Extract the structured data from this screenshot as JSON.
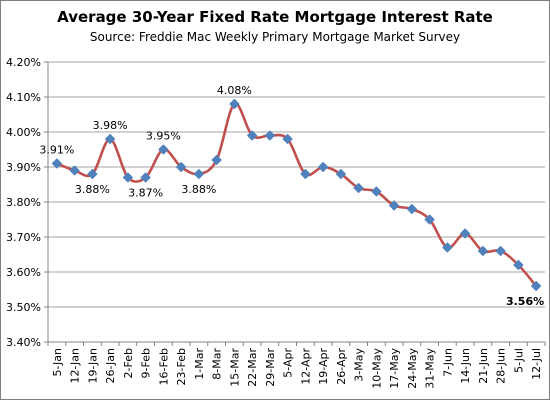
{
  "chart_data": {
    "type": "line",
    "title": "Average  30-Year Fixed Rate Mortgage Interest Rate",
    "subtitle": "Source:  Freddie  Mac Weekly  Primary  Mortgage Market Survey",
    "xlabel": "",
    "ylabel": "",
    "categories": [
      "5-Jan",
      "12-Jan",
      "19-Jan",
      "26-Jan",
      "2-Feb",
      "9-Feb",
      "16-Feb",
      "23-Feb",
      "1-Mar",
      "8-Mar",
      "15-Mar",
      "22-Mar",
      "29-Mar",
      "5-Apr",
      "12-Apr",
      "19-Apr",
      "26-Apr",
      "3-May",
      "10-May",
      "17-May",
      "24-May",
      "31-May",
      "7-Jun",
      "14-Jun",
      "21-Jun",
      "28-Jun",
      "5-Jul",
      "12-Jul"
    ],
    "series": [
      {
        "values": [
          3.91,
          3.89,
          3.88,
          3.98,
          3.87,
          3.87,
          3.95,
          3.9,
          3.88,
          3.92,
          4.08,
          3.99,
          3.99,
          3.98,
          3.88,
          3.9,
          3.88,
          3.84,
          3.83,
          3.79,
          3.78,
          3.75,
          3.67,
          3.71,
          3.66,
          3.66,
          3.62,
          3.56
        ],
        "line_color": "#c0504d",
        "marker_color": "#4f81bd"
      }
    ],
    "ylim": [
      3.4,
      4.2
    ],
    "y_ticks": [
      3.4,
      3.5,
      3.6,
      3.7,
      3.8,
      3.9,
      4.0,
      4.1,
      4.2
    ],
    "y_tick_labels": [
      "3.40%",
      "3.50%",
      "3.60%",
      "3.70%",
      "3.80%",
      "3.90%",
      "4.00%",
      "4.10%",
      "4.20%"
    ],
    "grid": true,
    "legend": "none",
    "data_labels": [
      {
        "index": 0,
        "text": "3.91%",
        "position": "above"
      },
      {
        "index": 2,
        "text": "3.88%",
        "position": "below"
      },
      {
        "index": 3,
        "text": "3.98%",
        "position": "above"
      },
      {
        "index": 5,
        "text": "3.87%",
        "position": "below"
      },
      {
        "index": 6,
        "text": "3.95%",
        "position": "above"
      },
      {
        "index": 8,
        "text": "3.88%",
        "position": "below"
      },
      {
        "index": 10,
        "text": "4.08%",
        "position": "above"
      },
      {
        "index": 27,
        "text": "3.56%",
        "position": "below",
        "bold": true
      }
    ],
    "colors": {
      "gridline": "#868686",
      "axis": "#868686"
    }
  }
}
